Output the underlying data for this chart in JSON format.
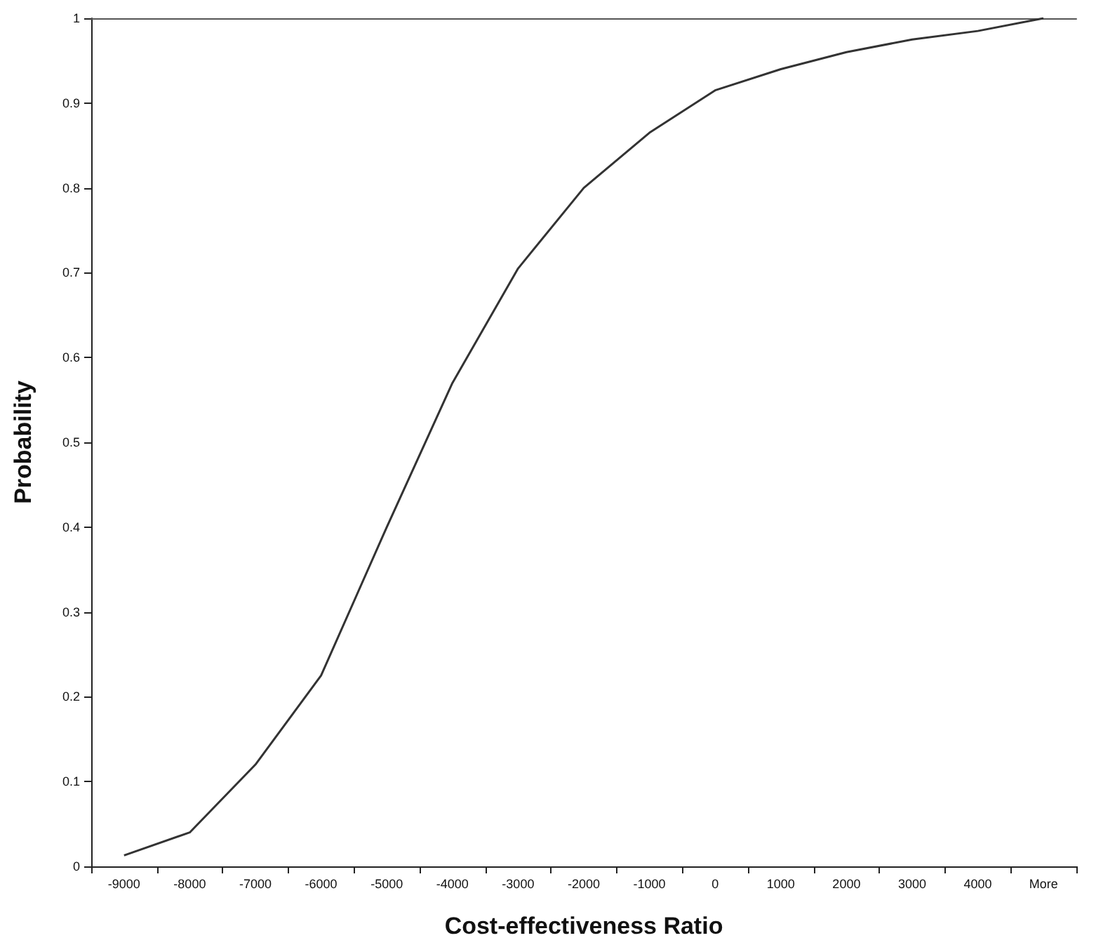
{
  "chart_data": {
    "type": "line",
    "xlabel": "Cost-effectiveness Ratio",
    "ylabel": "Probability",
    "categories": [
      "-9000",
      "-8000",
      "-7000",
      "-6000",
      "-5000",
      "-4000",
      "-3000",
      "-2000",
      "-1000",
      "0",
      "1000",
      "2000",
      "3000",
      "4000",
      "More"
    ],
    "series": [
      {
        "color": "#333333",
        "values": [
          0.013,
          0.04,
          0.12,
          0.225,
          0.4,
          0.57,
          0.705,
          0.8,
          0.865,
          0.915,
          0.94,
          0.96,
          0.975,
          0.985,
          1.0
        ]
      }
    ],
    "ylim": [
      0,
      1
    ],
    "yticks": [
      0,
      0.1,
      0.2,
      0.3,
      0.4,
      0.5,
      0.6,
      0.7,
      0.8,
      0.9,
      1
    ],
    "grid": false,
    "marker": "none",
    "line_style": "solid"
  }
}
